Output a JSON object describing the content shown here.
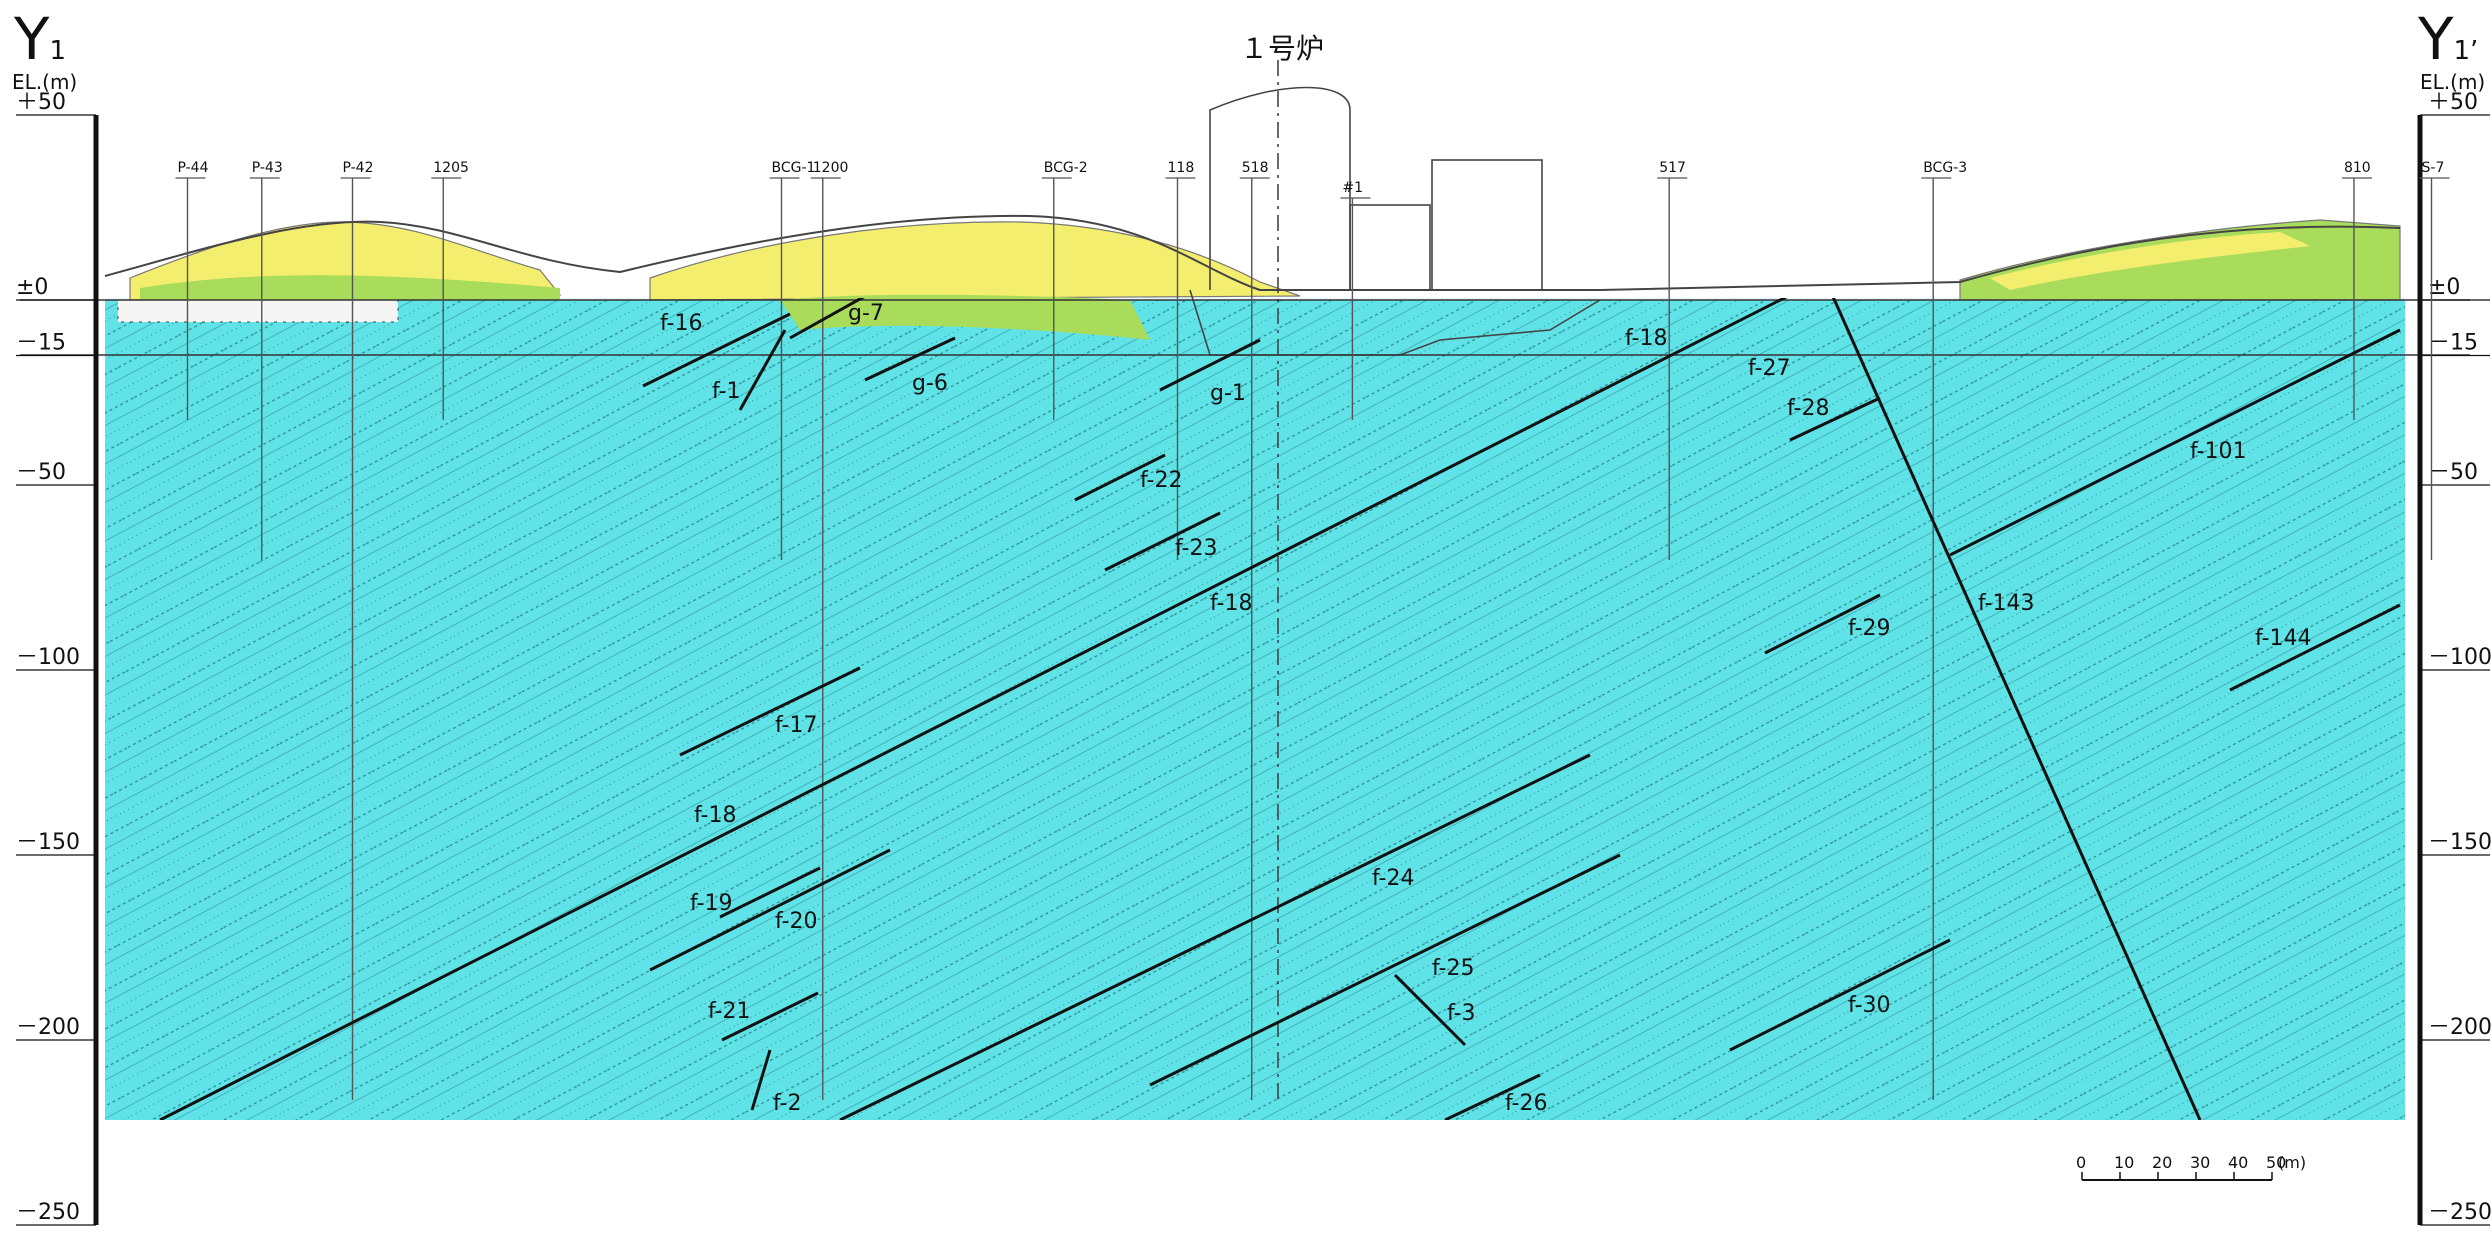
{
  "title": "１号炉",
  "section_left": {
    "letter": "Y",
    "sub": "1"
  },
  "section_right": {
    "letter": "Y",
    "sub": "1",
    "prime": "’"
  },
  "elevation_header": "EL.(m)",
  "elevation_labels": [
    {
      "text": "＋50",
      "el": 50
    },
    {
      "text": "±0",
      "el": 0
    },
    {
      "text": "－15",
      "el": -15
    },
    {
      "text": "－50",
      "el": -50
    },
    {
      "text": "－100",
      "el": -100
    },
    {
      "text": "－150",
      "el": -150
    },
    {
      "text": "－200",
      "el": -200
    },
    {
      "text": "－250",
      "el": -250
    }
  ],
  "boreholes": [
    {
      "label": "P-44",
      "x": 0.1
    },
    {
      "label": "P-43",
      "x": 0.145
    },
    {
      "label": "P-42",
      "x": 0.2
    },
    {
      "label": "1205",
      "x": 0.255
    },
    {
      "label": "BCG-1",
      "x": 0.46
    },
    {
      "label": "1200",
      "x": 0.485
    },
    {
      "label": "BCG-2",
      "x": 0.625
    },
    {
      "label": "118",
      "x": 0.7
    },
    {
      "label": "518",
      "x": 0.745
    },
    {
      "label": "#1",
      "x": 0.806
    },
    {
      "label": "517",
      "x": 0.998
    },
    {
      "label": "BCG-3",
      "x": 1.158
    },
    {
      "label": "810",
      "x": 1.413
    },
    {
      "label": "S-7",
      "x": 1.46
    }
  ],
  "faults": [
    {
      "label": "f-16"
    },
    {
      "label": "f-1"
    },
    {
      "label": "g-7"
    },
    {
      "label": "g-6"
    },
    {
      "label": "g-1"
    },
    {
      "label": "f-18"
    },
    {
      "label": "f-27"
    },
    {
      "label": "f-28"
    },
    {
      "label": "f-101"
    },
    {
      "label": "f-22"
    },
    {
      "label": "f-23"
    },
    {
      "label": "f-18"
    },
    {
      "label": "f-143"
    },
    {
      "label": "f-29"
    },
    {
      "label": "f-144"
    },
    {
      "label": "f-17"
    },
    {
      "label": "f-18"
    },
    {
      "label": "f-24"
    },
    {
      "label": "f-19"
    },
    {
      "label": "f-20"
    },
    {
      "label": "f-25"
    },
    {
      "label": "f-30"
    },
    {
      "label": "f-21"
    },
    {
      "label": "f-3"
    },
    {
      "label": "f-2"
    },
    {
      "label": "f-26"
    }
  ],
  "scale_bar": {
    "ticks": [
      "0",
      "10",
      "20",
      "30",
      "40",
      "50"
    ],
    "unit": "(m)"
  },
  "colors": {
    "bedrock": "#5fe3e6",
    "fill_yellow": "#f4ee6e",
    "green_layer": "#a8dc5a",
    "fault_line": "#111111",
    "sea_band": "#eef8ff"
  }
}
